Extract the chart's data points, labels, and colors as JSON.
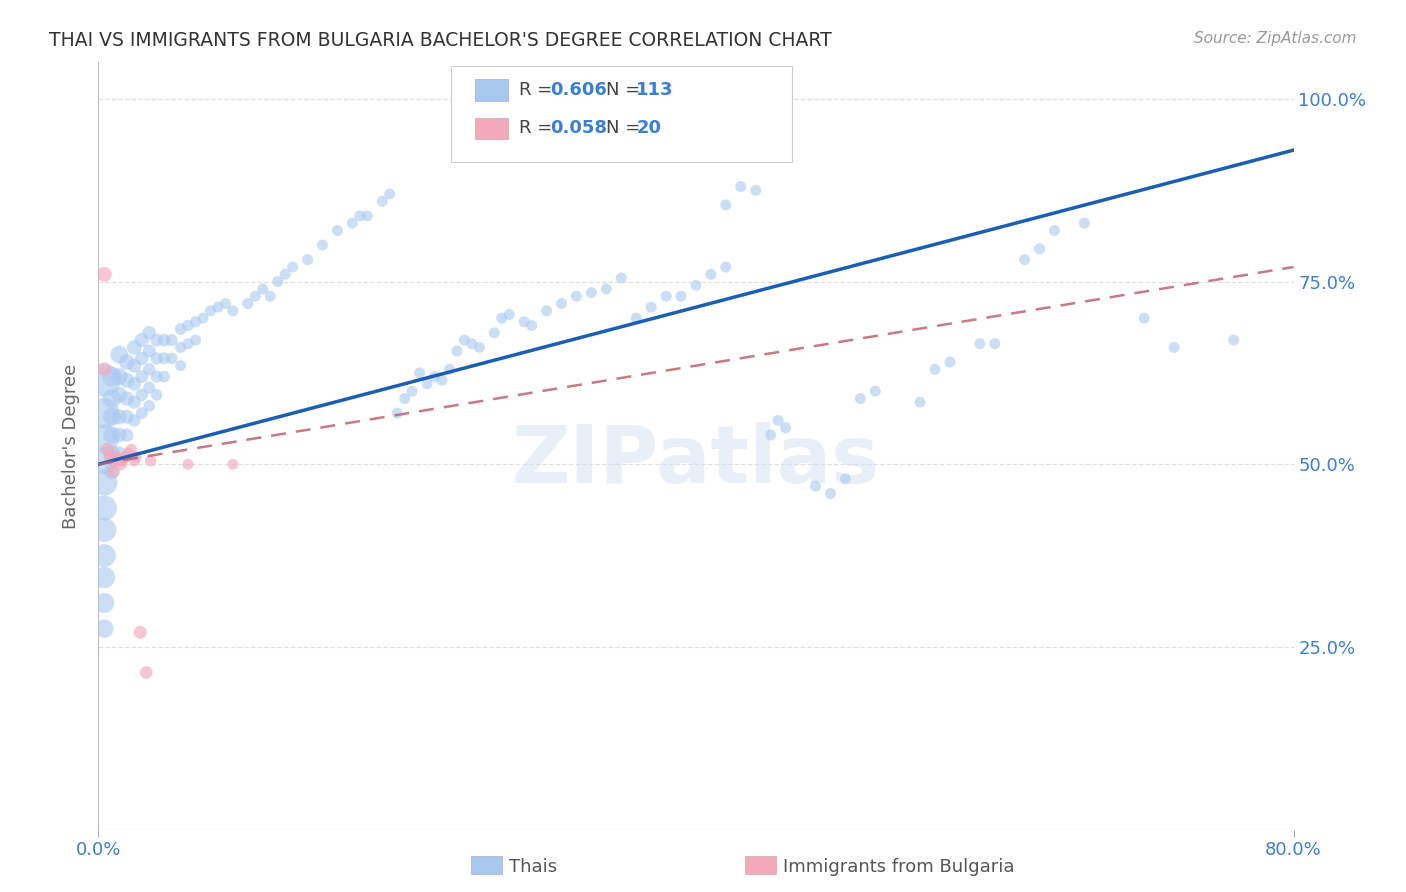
{
  "title": "THAI VS IMMIGRANTS FROM BULGARIA BACHELOR'S DEGREE CORRELATION CHART",
  "source": "Source: ZipAtlas.com",
  "ylabel": "Bachelor's Degree",
  "ytick_labels": [
    "25.0%",
    "50.0%",
    "75.0%",
    "100.0%"
  ],
  "watermark": "ZIPatlas",
  "xmin": 0.0,
  "xmax": 0.8,
  "ymin": 0.0,
  "ymax": 1.05,
  "yticks": [
    0.25,
    0.5,
    0.75,
    1.0
  ],
  "xticks": [
    0.0,
    0.8
  ],
  "xtick_labels": [
    "0.0%",
    "80.0%"
  ],
  "thai_color": "#a8c8f0",
  "bulg_color": "#f4a8bc",
  "thai_line_color": "#1a5fb4",
  "bulg_line_color": "#c06070",
  "background_color": "#ffffff",
  "grid_color": "#dddddd",
  "axis_label_color": "#3a7fd5",
  "thai_points": [
    [
      0.004,
      0.615
    ],
    [
      0.004,
      0.57
    ],
    [
      0.004,
      0.535
    ],
    [
      0.004,
      0.505
    ],
    [
      0.004,
      0.475
    ],
    [
      0.004,
      0.44
    ],
    [
      0.004,
      0.41
    ],
    [
      0.004,
      0.375
    ],
    [
      0.004,
      0.345
    ],
    [
      0.004,
      0.31
    ],
    [
      0.004,
      0.275
    ],
    [
      0.009,
      0.62
    ],
    [
      0.009,
      0.59
    ],
    [
      0.009,
      0.565
    ],
    [
      0.009,
      0.54
    ],
    [
      0.009,
      0.515
    ],
    [
      0.009,
      0.49
    ],
    [
      0.014,
      0.65
    ],
    [
      0.014,
      0.62
    ],
    [
      0.014,
      0.595
    ],
    [
      0.014,
      0.565
    ],
    [
      0.014,
      0.54
    ],
    [
      0.014,
      0.515
    ],
    [
      0.019,
      0.64
    ],
    [
      0.019,
      0.615
    ],
    [
      0.019,
      0.59
    ],
    [
      0.019,
      0.565
    ],
    [
      0.019,
      0.54
    ],
    [
      0.024,
      0.66
    ],
    [
      0.024,
      0.635
    ],
    [
      0.024,
      0.61
    ],
    [
      0.024,
      0.585
    ],
    [
      0.024,
      0.56
    ],
    [
      0.029,
      0.67
    ],
    [
      0.029,
      0.645
    ],
    [
      0.029,
      0.62
    ],
    [
      0.029,
      0.595
    ],
    [
      0.029,
      0.57
    ],
    [
      0.034,
      0.68
    ],
    [
      0.034,
      0.655
    ],
    [
      0.034,
      0.63
    ],
    [
      0.034,
      0.605
    ],
    [
      0.034,
      0.58
    ],
    [
      0.039,
      0.67
    ],
    [
      0.039,
      0.645
    ],
    [
      0.039,
      0.62
    ],
    [
      0.039,
      0.595
    ],
    [
      0.044,
      0.67
    ],
    [
      0.044,
      0.645
    ],
    [
      0.044,
      0.62
    ],
    [
      0.049,
      0.67
    ],
    [
      0.049,
      0.645
    ],
    [
      0.055,
      0.685
    ],
    [
      0.055,
      0.66
    ],
    [
      0.055,
      0.635
    ],
    [
      0.06,
      0.69
    ],
    [
      0.06,
      0.665
    ],
    [
      0.065,
      0.695
    ],
    [
      0.065,
      0.67
    ],
    [
      0.07,
      0.7
    ],
    [
      0.075,
      0.71
    ],
    [
      0.08,
      0.715
    ],
    [
      0.085,
      0.72
    ],
    [
      0.09,
      0.71
    ],
    [
      0.1,
      0.72
    ],
    [
      0.105,
      0.73
    ],
    [
      0.11,
      0.74
    ],
    [
      0.115,
      0.73
    ],
    [
      0.12,
      0.75
    ],
    [
      0.125,
      0.76
    ],
    [
      0.13,
      0.77
    ],
    [
      0.14,
      0.78
    ],
    [
      0.15,
      0.8
    ],
    [
      0.16,
      0.82
    ],
    [
      0.17,
      0.83
    ],
    [
      0.175,
      0.84
    ],
    [
      0.18,
      0.84
    ],
    [
      0.19,
      0.86
    ],
    [
      0.195,
      0.87
    ],
    [
      0.2,
      0.57
    ],
    [
      0.205,
      0.59
    ],
    [
      0.21,
      0.6
    ],
    [
      0.215,
      0.625
    ],
    [
      0.22,
      0.61
    ],
    [
      0.225,
      0.62
    ],
    [
      0.23,
      0.615
    ],
    [
      0.235,
      0.63
    ],
    [
      0.24,
      0.655
    ],
    [
      0.245,
      0.67
    ],
    [
      0.25,
      0.665
    ],
    [
      0.255,
      0.66
    ],
    [
      0.265,
      0.68
    ],
    [
      0.27,
      0.7
    ],
    [
      0.275,
      0.705
    ],
    [
      0.285,
      0.695
    ],
    [
      0.29,
      0.69
    ],
    [
      0.3,
      0.71
    ],
    [
      0.31,
      0.72
    ],
    [
      0.32,
      0.73
    ],
    [
      0.33,
      0.735
    ],
    [
      0.34,
      0.74
    ],
    [
      0.35,
      0.755
    ],
    [
      0.36,
      0.7
    ],
    [
      0.37,
      0.715
    ],
    [
      0.38,
      0.73
    ],
    [
      0.39,
      0.73
    ],
    [
      0.4,
      0.745
    ],
    [
      0.41,
      0.76
    ],
    [
      0.42,
      0.77
    ],
    [
      0.42,
      0.855
    ],
    [
      0.43,
      0.88
    ],
    [
      0.44,
      0.875
    ],
    [
      0.45,
      0.54
    ],
    [
      0.455,
      0.56
    ],
    [
      0.46,
      0.55
    ],
    [
      0.48,
      0.47
    ],
    [
      0.49,
      0.46
    ],
    [
      0.5,
      0.48
    ],
    [
      0.51,
      0.59
    ],
    [
      0.52,
      0.6
    ],
    [
      0.55,
      0.585
    ],
    [
      0.56,
      0.63
    ],
    [
      0.57,
      0.64
    ],
    [
      0.59,
      0.665
    ],
    [
      0.6,
      0.665
    ],
    [
      0.62,
      0.78
    ],
    [
      0.63,
      0.795
    ],
    [
      0.64,
      0.82
    ],
    [
      0.66,
      0.83
    ],
    [
      0.7,
      0.7
    ],
    [
      0.72,
      0.66
    ],
    [
      0.76,
      0.67
    ]
  ],
  "thai_sizes": [
    220,
    190,
    170,
    155,
    140,
    130,
    118,
    108,
    95,
    82,
    70,
    80,
    72,
    65,
    60,
    55,
    50,
    65,
    58,
    52,
    48,
    44,
    40,
    52,
    47,
    43,
    40,
    37,
    45,
    41,
    38,
    35,
    33,
    42,
    38,
    35,
    32,
    30,
    38,
    35,
    32,
    30,
    28,
    35,
    32,
    30,
    28,
    33,
    30,
    28,
    30,
    28,
    28,
    26,
    25,
    27,
    26,
    26,
    25,
    25,
    25,
    25,
    25,
    25,
    25,
    25,
    25,
    25,
    25,
    25,
    25,
    25,
    25,
    25,
    25,
    25,
    25,
    25,
    25,
    25,
    25,
    25,
    25,
    25,
    25,
    25,
    25,
    25,
    25,
    25,
    25,
    25,
    25,
    25,
    25,
    25,
    25,
    25,
    25,
    25,
    25,
    25,
    25,
    25,
    25,
    25,
    25,
    25,
    25,
    25,
    25,
    25,
    25,
    25,
    25,
    25,
    25,
    25,
    25,
    25,
    25,
    25,
    25,
    25
  ],
  "bulg_points": [
    [
      0.004,
      0.76
    ],
    [
      0.004,
      0.63
    ],
    [
      0.006,
      0.52
    ],
    [
      0.008,
      0.51
    ],
    [
      0.01,
      0.505
    ],
    [
      0.01,
      0.49
    ],
    [
      0.012,
      0.51
    ],
    [
      0.014,
      0.505
    ],
    [
      0.015,
      0.5
    ],
    [
      0.016,
      0.505
    ],
    [
      0.018,
      0.51
    ],
    [
      0.02,
      0.515
    ],
    [
      0.022,
      0.52
    ],
    [
      0.024,
      0.505
    ],
    [
      0.025,
      0.51
    ],
    [
      0.028,
      0.27
    ],
    [
      0.032,
      0.215
    ],
    [
      0.035,
      0.505
    ],
    [
      0.06,
      0.5
    ],
    [
      0.09,
      0.5
    ]
  ],
  "bulg_sizes": [
    45,
    40,
    38,
    36,
    34,
    32,
    32,
    30,
    30,
    30,
    30,
    28,
    28,
    28,
    28,
    35,
    33,
    28,
    25,
    25
  ]
}
